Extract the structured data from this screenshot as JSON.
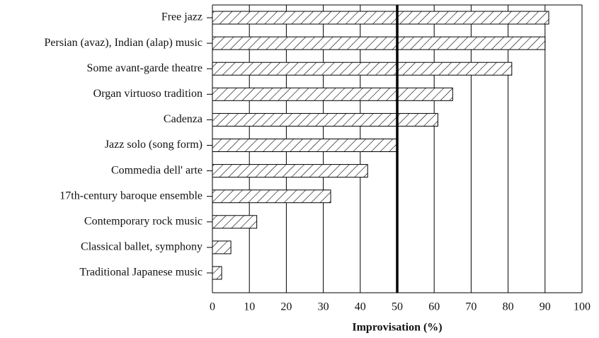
{
  "chart_data": {
    "type": "barh",
    "xlabel": "Improvisation (%)",
    "categories": [
      "Free jazz",
      "Persian (avaz), Indian (alap) music",
      "Some avant-garde theatre",
      "Organ virtuoso tradition",
      "Cadenza",
      "Jazz solo (song form)",
      "Commedia dell' arte",
      "17th-century baroque ensemble",
      "Contemporary rock music",
      "Classical ballet, symphony",
      "Traditional Japanese music"
    ],
    "values": [
      91,
      90,
      81,
      65,
      61,
      50,
      42,
      32,
      12,
      5,
      2.5
    ],
    "color": "#000000",
    "hatch": true,
    "xlim": [
      0,
      100
    ],
    "xticks": [
      0,
      10,
      20,
      30,
      40,
      50,
      60,
      70,
      80,
      90,
      100
    ],
    "grid": true,
    "reference_line": 50
  }
}
